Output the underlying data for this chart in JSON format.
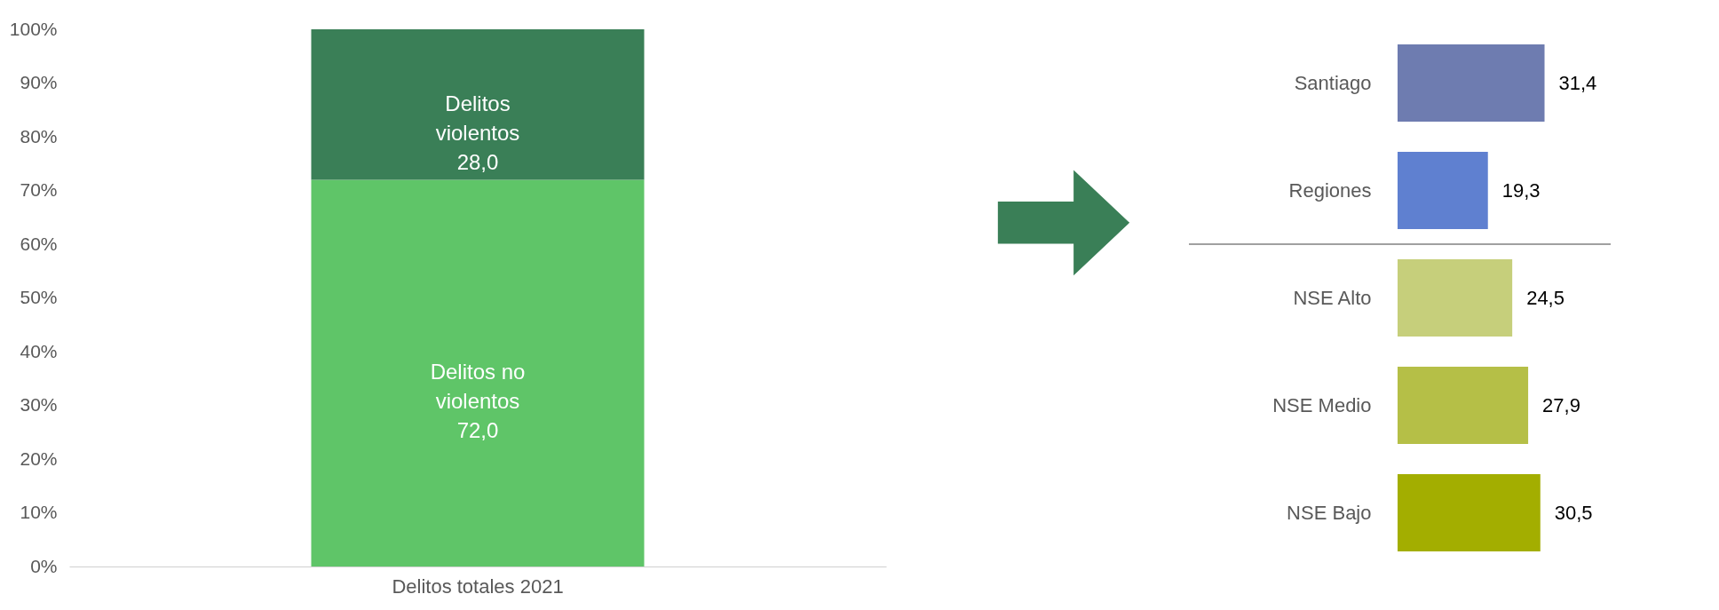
{
  "chart_data": [
    {
      "type": "bar",
      "stacked": true,
      "categories": [
        "Delitos totales 2021"
      ],
      "series": [
        {
          "name": "Delitos no violentos",
          "color": "#5fc568",
          "values": [
            72.0
          ],
          "value_labels": [
            "72,0"
          ]
        },
        {
          "name": "Delitos violentos",
          "color": "#3a7f57",
          "values": [
            28.0
          ],
          "value_labels": [
            "28,0"
          ]
        }
      ],
      "ylim": [
        0,
        100
      ],
      "yticks": [
        {
          "value": 0,
          "label": "0%"
        },
        {
          "value": 10,
          "label": "10%"
        },
        {
          "value": 20,
          "label": "20%"
        },
        {
          "value": 30,
          "label": "30%"
        },
        {
          "value": 40,
          "label": "40%"
        },
        {
          "value": 50,
          "label": "50%"
        },
        {
          "value": 60,
          "label": "60%"
        },
        {
          "value": 70,
          "label": "70%"
        },
        {
          "value": 80,
          "label": "80%"
        },
        {
          "value": 90,
          "label": "90%"
        },
        {
          "value": 100,
          "label": "100%"
        }
      ],
      "grid": false
    },
    {
      "type": "bar",
      "orientation": "horizontal",
      "categories": [
        "Santiago",
        "Regiones",
        "NSE Alto",
        "NSE Medio",
        "NSE Bajo"
      ],
      "values": [
        31.4,
        19.3,
        24.5,
        27.9,
        30.5
      ],
      "colors": [
        "#6e7cb0",
        "#5f80d0",
        "#c6cf7b",
        "#b5bf47",
        "#a3ae00"
      ],
      "value_labels": [
        "31,4",
        "19,3",
        "24,5",
        "27,9",
        "30,5"
      ],
      "grid": false
    }
  ]
}
